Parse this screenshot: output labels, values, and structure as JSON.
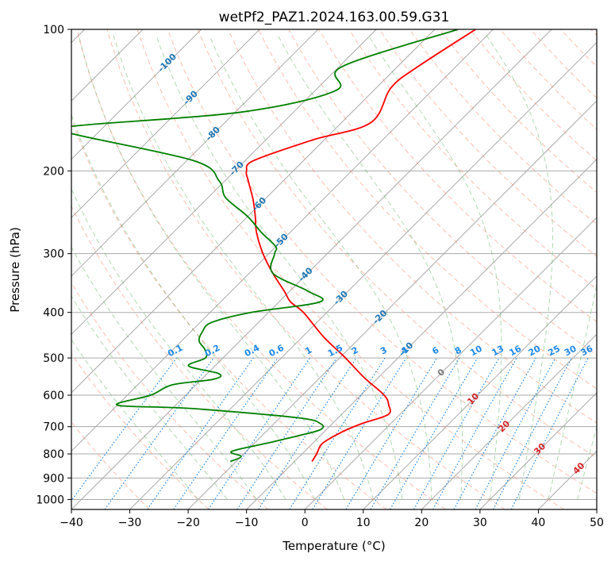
{
  "chart_data": {
    "type": "line",
    "title": "wetPf2_PAZ1.2024.163.00.59.G31",
    "xlabel": "Temperature (°C)",
    "ylabel": "Pressure (hPa)",
    "xlim": [
      -40,
      50
    ],
    "ylim_hpa": [
      1050,
      100
    ],
    "y_scale": "log",
    "grid": true,
    "x_ticks": [
      -40,
      -30,
      -20,
      -10,
      0,
      10,
      20,
      30,
      40,
      50
    ],
    "y_ticks": [
      100,
      200,
      300,
      400,
      500,
      600,
      700,
      800,
      900,
      1000
    ],
    "skew_deg": 45,
    "colors": {
      "temperature": "#ff0000",
      "dewpoint": "#008000",
      "dry_adiabat": "#ff8060",
      "moist_adiabat": "#55aa55",
      "mixing_ratio": "#1e88e5",
      "isotherm_label": "#1f77b4",
      "isotherm_label_warm": "#d62728",
      "grid": "#aaaaaa"
    },
    "isotherm_labels": [
      {
        "t": -100,
        "p": 118
      },
      {
        "t": -90,
        "p": 140
      },
      {
        "t": -80,
        "p": 167
      },
      {
        "t": -70,
        "p": 198
      },
      {
        "t": -60,
        "p": 236
      },
      {
        "t": -50,
        "p": 282
      },
      {
        "t": -40,
        "p": 333
      },
      {
        "t": -30,
        "p": 373
      },
      {
        "t": -20,
        "p": 410
      },
      {
        "t": -10,
        "p": 480
      },
      {
        "t": 0,
        "p": 538
      },
      {
        "t": 10,
        "p": 612
      },
      {
        "t": 20,
        "p": 700
      },
      {
        "t": 30,
        "p": 782
      },
      {
        "t": 40,
        "p": 860
      }
    ],
    "mixing_ratio_labels": [
      "0.1",
      "0.2",
      "0.4",
      "0.6",
      "1",
      "1.5",
      "2",
      "3",
      "4",
      "6",
      "8",
      "10",
      "13",
      "16",
      "20",
      "25",
      "30",
      "36"
    ],
    "mixing_ratio_label_p": 500,
    "series": [
      {
        "key": "temperature",
        "p": [
          100,
          120,
          133,
          158,
          172,
          190,
          200,
          210,
          230,
          250,
          270,
          300,
          330,
          360,
          380,
          400,
          450,
          500,
          550,
          600,
          630,
          660,
          690,
          720,
          760,
          800,
          830
        ],
        "t": [
          -53,
          -56.5,
          -57.5,
          -55,
          -62,
          -68.5,
          -68,
          -66,
          -62,
          -58.7,
          -55.8,
          -51,
          -46,
          -41,
          -38,
          -34,
          -26.5,
          -19,
          -12.5,
          -6,
          -3.5,
          -2,
          -5,
          -7,
          -8.3,
          -7.5,
          -7
        ]
      },
      {
        "key": "dewpoint",
        "p": [
          100,
          120,
          135,
          150,
          160,
          165,
          190,
          210,
          228,
          250,
          270,
          290,
          300,
          330,
          360,
          380,
          400,
          420,
          440,
          460,
          480,
          500,
          520,
          540,
          555,
          570,
          600,
          630,
          640,
          670,
          690,
          710,
          730,
          760,
          790,
          810,
          830
        ],
        "td": [
          -56,
          -69.5,
          -66.5,
          -79,
          -104,
          -106,
          -79,
          -71,
          -67,
          -60,
          -55,
          -50,
          -49,
          -46,
          -37,
          -33,
          -43,
          -48,
          -48,
          -47,
          -44.5,
          -43,
          -44.5,
          -38,
          -38,
          -44,
          -46,
          -50,
          -37,
          -17,
          -12,
          -11,
          -13.5,
          -18,
          -22.5,
          -20,
          -21
        ]
      }
    ]
  }
}
